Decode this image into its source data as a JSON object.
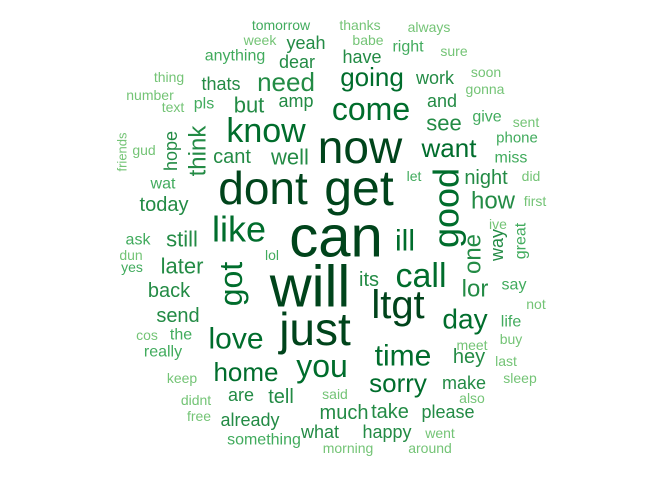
{
  "words": [
    {
      "text": "can",
      "weight": 1.0
    },
    {
      "text": "will",
      "weight": 0.98
    },
    {
      "text": "get",
      "weight": 0.9
    },
    {
      "text": "dont",
      "weight": 0.85
    },
    {
      "text": "just",
      "weight": 0.85
    },
    {
      "text": "now",
      "weight": 0.8
    },
    {
      "text": "ltgt",
      "weight": 0.72
    },
    {
      "text": "call",
      "weight": 0.62
    },
    {
      "text": "like",
      "weight": 0.62
    },
    {
      "text": "know",
      "weight": 0.6
    },
    {
      "text": "come",
      "weight": 0.6
    },
    {
      "text": "good",
      "weight": 0.6
    },
    {
      "text": "ill",
      "weight": 0.56
    },
    {
      "text": "got",
      "weight": 0.56
    },
    {
      "text": "time",
      "weight": 0.55
    },
    {
      "text": "you",
      "weight": 0.53
    },
    {
      "text": "day",
      "weight": 0.5
    },
    {
      "text": "love",
      "weight": 0.5
    },
    {
      "text": "home",
      "weight": 0.47
    },
    {
      "text": "going",
      "weight": 0.45
    },
    {
      "text": "want",
      "weight": 0.45
    },
    {
      "text": "sorry",
      "weight": 0.45
    },
    {
      "text": "one",
      "weight": 0.4
    },
    {
      "text": "need",
      "weight": 0.4
    },
    {
      "text": "how",
      "weight": 0.4
    },
    {
      "text": "think",
      "weight": 0.38
    },
    {
      "text": "lor",
      "weight": 0.38
    },
    {
      "text": "still",
      "weight": 0.36
    },
    {
      "text": "later",
      "weight": 0.36
    },
    {
      "text": "well",
      "weight": 0.35
    },
    {
      "text": "see",
      "weight": 0.35
    },
    {
      "text": "but",
      "weight": 0.34
    },
    {
      "text": "back",
      "weight": 0.33
    },
    {
      "text": "send",
      "weight": 0.33
    },
    {
      "text": "its",
      "weight": 0.33
    },
    {
      "text": "night",
      "weight": 0.33
    },
    {
      "text": "hey",
      "weight": 0.33
    },
    {
      "text": "cant",
      "weight": 0.32
    },
    {
      "text": "much",
      "weight": 0.3
    },
    {
      "text": "tell",
      "weight": 0.3
    },
    {
      "text": "take",
      "weight": 0.3
    },
    {
      "text": "today",
      "weight": 0.3
    },
    {
      "text": "way",
      "weight": 0.28
    },
    {
      "text": "hope",
      "weight": 0.26
    },
    {
      "text": "dear",
      "weight": 0.26
    },
    {
      "text": "yeah",
      "weight": 0.26
    },
    {
      "text": "have",
      "weight": 0.26
    },
    {
      "text": "thats",
      "weight": 0.26
    },
    {
      "text": "work",
      "weight": 0.26
    },
    {
      "text": "and",
      "weight": 0.26
    },
    {
      "text": "amp",
      "weight": 0.26
    },
    {
      "text": "are",
      "weight": 0.26
    },
    {
      "text": "make",
      "weight": 0.26
    },
    {
      "text": "please",
      "weight": 0.26
    },
    {
      "text": "already",
      "weight": 0.26
    },
    {
      "text": "what",
      "weight": 0.26
    },
    {
      "text": "happy",
      "weight": 0.26
    },
    {
      "text": "wat",
      "weight": 0.24
    },
    {
      "text": "great",
      "weight": 0.24
    },
    {
      "text": "say",
      "weight": 0.24
    },
    {
      "text": "give",
      "weight": 0.24
    },
    {
      "text": "miss",
      "weight": 0.24
    },
    {
      "text": "really",
      "weight": 0.24
    },
    {
      "text": "the",
      "weight": 0.24
    },
    {
      "text": "life",
      "weight": 0.22
    },
    {
      "text": "pls",
      "weight": 0.22
    },
    {
      "text": "anything",
      "weight": 0.22
    },
    {
      "text": "right",
      "weight": 0.22
    },
    {
      "text": "ask",
      "weight": 0.2
    },
    {
      "text": "something",
      "weight": 0.22
    },
    {
      "text": "phone",
      "weight": 0.2
    },
    {
      "text": "yes",
      "weight": 0.2
    },
    {
      "text": "lol",
      "weight": 0.18
    },
    {
      "text": "let",
      "weight": 0.18
    },
    {
      "text": "tomorrow",
      "weight": 0.18
    },
    {
      "text": "thanks",
      "weight": 0.16
    },
    {
      "text": "always",
      "weight": 0.16
    },
    {
      "text": "week",
      "weight": 0.16
    },
    {
      "text": "babe",
      "weight": 0.16
    },
    {
      "text": "sure",
      "weight": 0.16
    },
    {
      "text": "thing",
      "weight": 0.16
    },
    {
      "text": "soon",
      "weight": 0.16
    },
    {
      "text": "number",
      "weight": 0.16
    },
    {
      "text": "gonna",
      "weight": 0.16
    },
    {
      "text": "text",
      "weight": 0.16
    },
    {
      "text": "sent",
      "weight": 0.16
    },
    {
      "text": "friends",
      "weight": 0.16
    },
    {
      "text": "gud",
      "weight": 0.16
    },
    {
      "text": "did",
      "weight": 0.16
    },
    {
      "text": "first",
      "weight": 0.16
    },
    {
      "text": "ive",
      "weight": 0.16
    },
    {
      "text": "dun",
      "weight": 0.16
    },
    {
      "text": "not",
      "weight": 0.16
    },
    {
      "text": "cos",
      "weight": 0.16
    },
    {
      "text": "buy",
      "weight": 0.16
    },
    {
      "text": "meet",
      "weight": 0.16
    },
    {
      "text": "last",
      "weight": 0.16
    },
    {
      "text": "keep",
      "weight": 0.16
    },
    {
      "text": "sleep",
      "weight": 0.16
    },
    {
      "text": "said",
      "weight": 0.16
    },
    {
      "text": "didnt",
      "weight": 0.16
    },
    {
      "text": "also",
      "weight": 0.16
    },
    {
      "text": "free",
      "weight": 0.16
    },
    {
      "text": "went",
      "weight": 0.16
    },
    {
      "text": "morning",
      "weight": 0.16
    },
    {
      "text": "around",
      "weight": 0.16
    }
  ],
  "palette": [
    "#74c476",
    "#41ab5d",
    "#238b45",
    "#006d2c",
    "#00441b"
  ]
}
